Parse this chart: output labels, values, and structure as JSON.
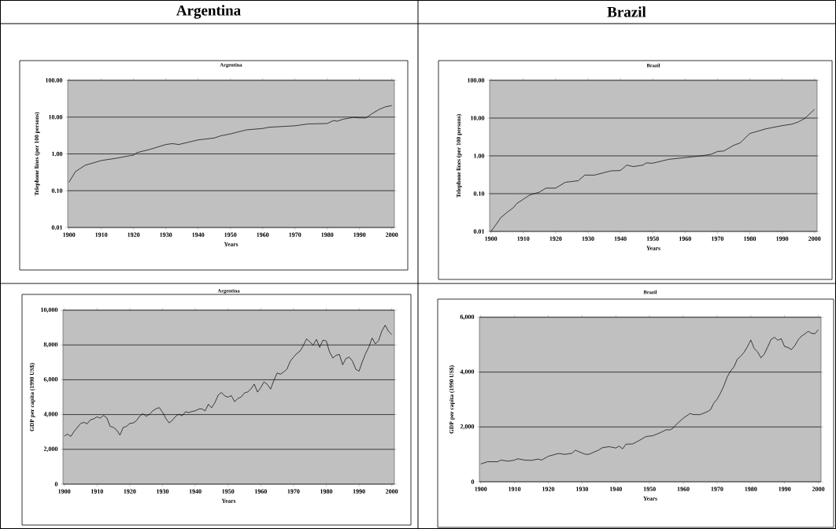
{
  "chart_data": [
    {
      "type": "line",
      "title": "Argentina",
      "annotations": [
        "Argentina"
      ],
      "xlabel": "Years",
      "ylabel": "Telephone lines (per 100 persons)",
      "log": true,
      "grid": "y",
      "x": [
        1900,
        1902,
        1905,
        1910,
        1915,
        1919,
        1920,
        1921,
        1925,
        1930,
        1932,
        1934,
        1940,
        1945,
        1947,
        1950,
        1955,
        1960,
        1962,
        1970,
        1974,
        1980,
        1982,
        1983,
        1985,
        1988,
        1990,
        1992,
        1994,
        1996,
        1998,
        2000
      ],
      "series": [
        {
          "color": "#000000",
          "values": [
            0.17,
            0.33,
            0.49,
            0.66,
            0.77,
            0.9,
            0.92,
            1.08,
            1.32,
            1.8,
            1.9,
            1.8,
            2.4,
            2.7,
            3.1,
            3.5,
            4.5,
            4.9,
            5.3,
            5.8,
            6.5,
            6.7,
            8.1,
            7.7,
            8.8,
            9.8,
            9.5,
            9.5,
            12.6,
            16,
            19,
            20.6
          ]
        }
      ],
      "xlim": [
        1899.6,
        2000.8
      ],
      "ylim": [
        0.01,
        100
      ],
      "xticks": [
        1900,
        1910,
        1920,
        1930,
        1940,
        1950,
        1960,
        1970,
        1980,
        1990,
        2000
      ],
      "yticks": [
        {
          "value": 0.01,
          "label": "0.01"
        },
        {
          "value": 0.1,
          "label": "0.10"
        },
        {
          "value": 1,
          "label": "1.00"
        },
        {
          "value": 10,
          "label": "10.00"
        },
        {
          "value": 100,
          "label": "100.00"
        }
      ]
    },
    {
      "type": "line",
      "title": "Brazil",
      "annotations": [
        "Brazil"
      ],
      "xlabel": "Years",
      "ylabel": "Telephone lines (per 100 persons)",
      "log": true,
      "grid": "y",
      "x": [
        1900,
        1902,
        1903,
        1905,
        1907,
        1908,
        1910,
        1912,
        1915,
        1917,
        1920,
        1923,
        1925,
        1927,
        1929,
        1932,
        1935,
        1937,
        1940,
        1942,
        1944,
        1947,
        1948,
        1950,
        1955,
        1960,
        1965,
        1968,
        1970,
        1972,
        1975,
        1977,
        1980,
        1985,
        1990,
        1993,
        1995,
        1997,
        2000
      ],
      "series": [
        {
          "color": "#000000",
          "values": [
            0.01,
            0.017,
            0.023,
            0.032,
            0.043,
            0.055,
            0.071,
            0.092,
            0.11,
            0.14,
            0.14,
            0.2,
            0.21,
            0.22,
            0.31,
            0.31,
            0.36,
            0.4,
            0.41,
            0.57,
            0.52,
            0.57,
            0.65,
            0.64,
            0.81,
            0.9,
            1.0,
            1.1,
            1.3,
            1.35,
            1.9,
            2.2,
            3.9,
            5.2,
            6.3,
            6.9,
            7.9,
            9.8,
            17
          ]
        }
      ],
      "xlim": [
        1899.6,
        2000.8
      ],
      "ylim": [
        0.01,
        100
      ],
      "xticks": [
        1900,
        1910,
        1920,
        1930,
        1940,
        1950,
        1960,
        1970,
        1980,
        1990,
        2000
      ],
      "yticks": [
        {
          "value": 0.01,
          "label": "0.01"
        },
        {
          "value": 0.1,
          "label": "0.10"
        },
        {
          "value": 1,
          "label": "1.00"
        },
        {
          "value": 10,
          "label": "10.00"
        },
        {
          "value": 100,
          "label": "100.00"
        }
      ]
    },
    {
      "type": "line",
      "title": "Argentina",
      "xlabel": "Years",
      "ylabel": "GDP per capita (1990 US$)",
      "grid": "y",
      "x": [
        1900,
        1901,
        1902,
        1903,
        1904,
        1905,
        1906,
        1907,
        1908,
        1909,
        1910,
        1911,
        1912,
        1913,
        1914,
        1915,
        1916,
        1917,
        1918,
        1919,
        1920,
        1921,
        1922,
        1923,
        1924,
        1925,
        1926,
        1927,
        1928,
        1929,
        1930,
        1931,
        1932,
        1933,
        1934,
        1935,
        1936,
        1937,
        1938,
        1939,
        1940,
        1941,
        1942,
        1943,
        1944,
        1945,
        1946,
        1947,
        1948,
        1949,
        1950,
        1951,
        1952,
        1953,
        1954,
        1955,
        1956,
        1957,
        1958,
        1959,
        1960,
        1961,
        1962,
        1963,
        1964,
        1965,
        1966,
        1967,
        1968,
        1969,
        1970,
        1971,
        1972,
        1973,
        1974,
        1975,
        1976,
        1977,
        1978,
        1979,
        1980,
        1981,
        1982,
        1983,
        1984,
        1985,
        1986,
        1987,
        1988,
        1989,
        1990,
        1991,
        1992,
        1993,
        1994,
        1995,
        1996,
        1997,
        1998,
        1999,
        2000
      ],
      "series": [
        {
          "color": "#000000",
          "values": [
            2760,
            2880,
            2740,
            3030,
            3260,
            3490,
            3550,
            3470,
            3700,
            3750,
            3870,
            3800,
            3950,
            3810,
            3320,
            3260,
            3110,
            2820,
            3260,
            3320,
            3490,
            3510,
            3640,
            3900,
            4050,
            3900,
            4010,
            4210,
            4330,
            4400,
            4130,
            3780,
            3520,
            3670,
            3900,
            4020,
            3930,
            4160,
            4110,
            4180,
            4210,
            4310,
            4330,
            4210,
            4590,
            4390,
            4690,
            5120,
            5270,
            5070,
            5000,
            5090,
            4740,
            4920,
            5010,
            5240,
            5300,
            5470,
            5750,
            5290,
            5550,
            5880,
            5730,
            5460,
            5960,
            6390,
            6320,
            6450,
            6610,
            7060,
            7300,
            7510,
            7650,
            7970,
            8350,
            8170,
            7990,
            8320,
            7860,
            8280,
            8230,
            7600,
            7250,
            7410,
            7450,
            6860,
            7220,
            7300,
            7070,
            6610,
            6490,
            7030,
            7500,
            7880,
            8400,
            8060,
            8260,
            8810,
            9140,
            8780,
            8600
          ]
        }
      ],
      "xlim": [
        1899.6,
        2000.8
      ],
      "ylim": [
        0,
        10000
      ],
      "xticks": [
        1900,
        1910,
        1920,
        1930,
        1940,
        1950,
        1960,
        1970,
        1980,
        1990,
        2000
      ],
      "yticks": [
        0,
        {
          "value": 2000,
          "label": "2,000"
        },
        {
          "value": 4000,
          "label": "4,000"
        },
        {
          "value": 6000,
          "label": "6,000"
        },
        {
          "value": 8000,
          "label": "8,000"
        },
        {
          "value": 10000,
          "label": "10,000"
        }
      ]
    },
    {
      "type": "line",
      "title": "Brazil",
      "xlabel": "Years",
      "ylabel": "GDP per capita (1990 US$)",
      "grid": "y",
      "x": [
        1900,
        1902,
        1905,
        1906,
        1908,
        1910,
        1911,
        1913,
        1915,
        1917,
        1918,
        1920,
        1923,
        1925,
        1927,
        1928,
        1929,
        1931,
        1932,
        1935,
        1936,
        1938,
        1940,
        1941,
        1942,
        1943,
        1945,
        1947,
        1949,
        1951,
        1953,
        1955,
        1956,
        1957,
        1958,
        1960,
        1962,
        1963,
        1965,
        1967,
        1968,
        1969,
        1970,
        1971,
        1972,
        1973,
        1974,
        1975,
        1976,
        1977,
        1978,
        1979,
        1980,
        1981,
        1982,
        1983,
        1984,
        1985,
        1986,
        1987,
        1988,
        1989,
        1990,
        1991,
        1992,
        1993,
        1994,
        1995,
        1996,
        1997,
        1998,
        1999,
        2000
      ],
      "series": [
        {
          "color": "#000000",
          "values": [
            650,
            730,
            730,
            790,
            750,
            790,
            840,
            790,
            780,
            830,
            790,
            930,
            1030,
            1000,
            1040,
            1150,
            1100,
            1000,
            1000,
            1160,
            1240,
            1280,
            1230,
            1300,
            1200,
            1370,
            1380,
            1510,
            1650,
            1680,
            1780,
            1900,
            1890,
            1960,
            2100,
            2320,
            2490,
            2450,
            2450,
            2550,
            2620,
            2860,
            3010,
            3230,
            3500,
            3820,
            4040,
            4190,
            4470,
            4580,
            4720,
            4930,
            5170,
            4860,
            4740,
            4520,
            4660,
            4920,
            5190,
            5270,
            5160,
            5220,
            4930,
            4900,
            4820,
            4960,
            5170,
            5310,
            5390,
            5490,
            5410,
            5400,
            5550
          ]
        }
      ],
      "xlim": [
        1899.6,
        2000.8
      ],
      "ylim": [
        0,
        6000
      ],
      "xticks": [
        1900,
        1910,
        1920,
        1930,
        1940,
        1950,
        1960,
        1970,
        1980,
        1990,
        2000
      ],
      "yticks": [
        0,
        {
          "value": 2000,
          "label": "2,000"
        },
        {
          "value": 4000,
          "label": "4,000"
        },
        {
          "value": 6000,
          "label": "6,000"
        }
      ]
    }
  ]
}
